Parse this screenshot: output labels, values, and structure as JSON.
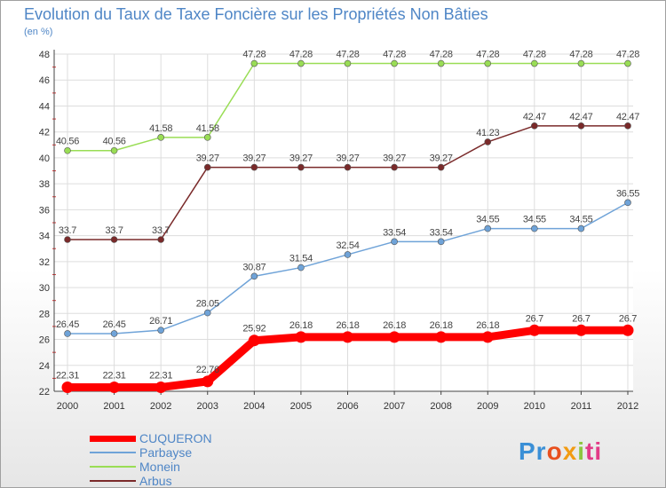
{
  "header": {
    "title": "Evolution du Taux de Taxe Foncière sur les Propriétés Non Bâties",
    "unit": "(en %)"
  },
  "chart_data": {
    "type": "line",
    "title": "Evolution du Taux de Taxe Foncière sur les Propriétés Non Bâties",
    "ylabel": "(en %)",
    "xlabel": "",
    "x": [
      "2000",
      "2001",
      "2002",
      "2003",
      "2004",
      "2005",
      "2006",
      "2007",
      "2008",
      "2009",
      "2010",
      "2011",
      "2012"
    ],
    "ylim": [
      22,
      48
    ],
    "yticks": [
      22,
      24,
      26,
      28,
      30,
      32,
      34,
      36,
      38,
      40,
      42,
      44,
      46,
      48
    ],
    "grid": true,
    "legend_position": "bottom-left",
    "series": [
      {
        "name": "CUQUERON",
        "color": "#ff0000",
        "values": [
          22.31,
          22.31,
          22.31,
          22.76,
          25.92,
          26.18,
          26.18,
          26.18,
          26.18,
          26.18,
          26.7,
          26.7,
          26.7
        ],
        "labels": [
          "22.31",
          "22.31",
          "22.31",
          "22.76",
          "25.92",
          "26.18",
          "26.18",
          "26.18",
          "26.18",
          "26.18",
          "26.7",
          "26.7",
          "26.7"
        ]
      },
      {
        "name": "Parbayse",
        "color": "#6fa3d8",
        "values": [
          26.45,
          26.45,
          26.71,
          28.05,
          30.87,
          31.54,
          32.54,
          33.54,
          33.54,
          34.55,
          34.55,
          34.55,
          36.55
        ],
        "labels": [
          "26.45",
          "26.45",
          "26.71",
          "28.05",
          "30.87",
          "31.54",
          "32.54",
          "33.54",
          "33.54",
          "34.55",
          "34.55",
          "34.55",
          "36.55"
        ]
      },
      {
        "name": "Monein",
        "color": "#99dd55",
        "values": [
          40.56,
          40.56,
          41.58,
          41.58,
          47.28,
          47.28,
          47.28,
          47.28,
          47.28,
          47.28,
          47.28,
          47.28,
          47.28
        ],
        "labels": [
          "40.56",
          "40.56",
          "41.58",
          "41.58",
          "47.28",
          "47.28",
          "47.28",
          "47.28",
          "47.28",
          "47.28",
          "47.28",
          "47.28",
          "47.28"
        ]
      },
      {
        "name": "Arbus",
        "color": "#7a2a2a",
        "values": [
          33.7,
          33.7,
          33.7,
          39.27,
          39.27,
          39.27,
          39.27,
          39.27,
          39.27,
          41.23,
          42.47,
          42.47,
          42.47
        ],
        "labels": [
          "33.7",
          "33.7",
          "33.7",
          "39.27",
          "39.27",
          "39.27",
          "39.27",
          "39.27",
          "39.27",
          "41.23",
          "42.47",
          "42.47",
          "42.47"
        ]
      }
    ]
  },
  "legend": {
    "items": [
      {
        "label": "CUQUERON",
        "color": "#ff0000"
      },
      {
        "label": "Parbayse",
        "color": "#6fa3d8"
      },
      {
        "label": "Monein",
        "color": "#99dd55"
      },
      {
        "label": "Arbus",
        "color": "#7a2a2a"
      }
    ]
  },
  "logo": {
    "text": "Proxiti",
    "p1": "Pr",
    "p2": "o",
    "p3": "x",
    "p4": "i",
    "p5": "ti"
  }
}
